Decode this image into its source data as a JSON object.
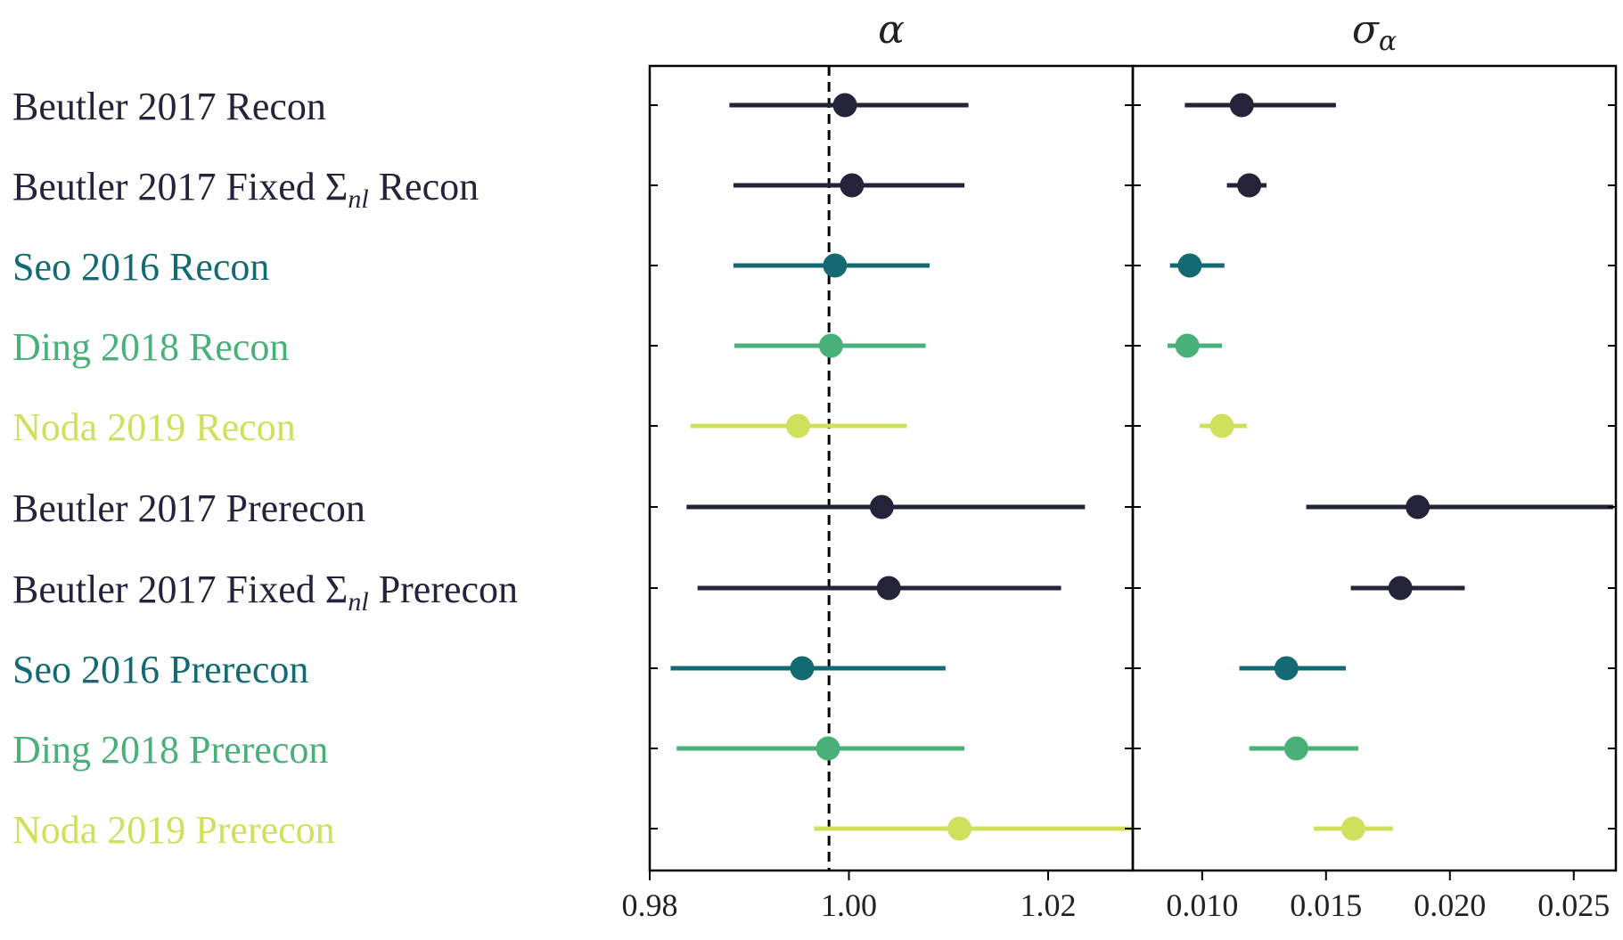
{
  "chart_data": {
    "type": "errorbar",
    "rows": [
      {
        "label": "Beutler 2017 Recon",
        "label_parts": [
          "Beutler 2017 Recon"
        ],
        "color": "#23233a",
        "alpha": {
          "value": 0.9996,
          "low": 0.988,
          "high": 1.012
        },
        "sigma": {
          "value": 0.0116,
          "low": 0.0093,
          "high": 0.0154
        }
      },
      {
        "label": "Beutler 2017 Fixed Σnl Recon",
        "label_parts": [
          "Beutler 2017 Fixed ",
          "Σ",
          "nl",
          " Recon"
        ],
        "color": "#23233a",
        "alpha": {
          "value": 1.0003,
          "low": 0.9884,
          "high": 1.0116
        },
        "sigma": {
          "value": 0.0119,
          "low": 0.011,
          "high": 0.0126
        }
      },
      {
        "label": "Seo 2016 Recon",
        "label_parts": [
          "Seo 2016 Recon"
        ],
        "color": "#146a72",
        "alpha": {
          "value": 0.9986,
          "low": 0.9884,
          "high": 1.0081
        },
        "sigma": {
          "value": 0.0095,
          "low": 0.0087,
          "high": 0.0109
        }
      },
      {
        "label": "Ding 2018 Recon",
        "label_parts": [
          "Ding 2018 Recon"
        ],
        "color": "#4ab07a",
        "alpha": {
          "value": 0.9982,
          "low": 0.9885,
          "high": 1.0077
        },
        "sigma": {
          "value": 0.0094,
          "low": 0.0086,
          "high": 0.0108
        }
      },
      {
        "label": "Noda 2019 Recon",
        "label_parts": [
          "Noda 2019 Recon"
        ],
        "color": "#cfe05c",
        "alpha": {
          "value": 0.9949,
          "low": 0.9841,
          "high": 1.0058
        },
        "sigma": {
          "value": 0.0108,
          "low": 0.0099,
          "high": 0.0118
        }
      },
      {
        "label": "Beutler 2017 Prerecon",
        "label_parts": [
          "Beutler 2017 Prerecon"
        ],
        "color": "#23233a",
        "alpha": {
          "value": 1.0033,
          "low": 0.9837,
          "high": 1.0237
        },
        "sigma": {
          "value": 0.0187,
          "low": 0.0142,
          "high": 0.0266
        }
      },
      {
        "label": "Beutler 2017 Fixed Σnl Prerecon",
        "label_parts": [
          "Beutler 2017 Fixed ",
          "Σ",
          "nl",
          " Prerecon"
        ],
        "color": "#23233a",
        "alpha": {
          "value": 1.004,
          "low": 0.9848,
          "high": 1.0213
        },
        "sigma": {
          "value": 0.018,
          "low": 0.016,
          "high": 0.0206
        }
      },
      {
        "label": "Seo 2016 Prerecon",
        "label_parts": [
          "Seo 2016 Prerecon"
        ],
        "color": "#146a72",
        "alpha": {
          "value": 0.9953,
          "low": 0.9821,
          "high": 1.0097
        },
        "sigma": {
          "value": 0.0134,
          "low": 0.0115,
          "high": 0.0158
        }
      },
      {
        "label": "Ding 2018 Prerecon",
        "label_parts": [
          "Ding 2018 Prerecon"
        ],
        "color": "#4ab07a",
        "alpha": {
          "value": 0.9979,
          "low": 0.9827,
          "high": 1.0116
        },
        "sigma": {
          "value": 0.0138,
          "low": 0.0119,
          "high": 0.0163
        }
      },
      {
        "label": "Noda 2019 Prerecon",
        "label_parts": [
          "Noda 2019 Prerecon"
        ],
        "color": "#cfe05c",
        "alpha": {
          "value": 1.0111,
          "low": 0.9965,
          "high": 1.0284
        },
        "sigma": {
          "value": 0.0161,
          "low": 0.0145,
          "high": 0.0177
        }
      }
    ],
    "panels": [
      {
        "title": "α",
        "xlim": [
          0.98,
          1.0285
        ],
        "ticks": [
          0.98,
          1.0,
          1.02
        ],
        "tick_labels": [
          "0.98",
          "1.00",
          "1.02"
        ],
        "reference_line": 0.998
      },
      {
        "title": "σ",
        "title_sub": "α",
        "xlim": [
          0.0072,
          0.0267
        ],
        "ticks": [
          0.01,
          0.015,
          0.02,
          0.025
        ],
        "tick_labels": [
          "0.010",
          "0.015",
          "0.020",
          "0.025"
        ]
      }
    ]
  }
}
